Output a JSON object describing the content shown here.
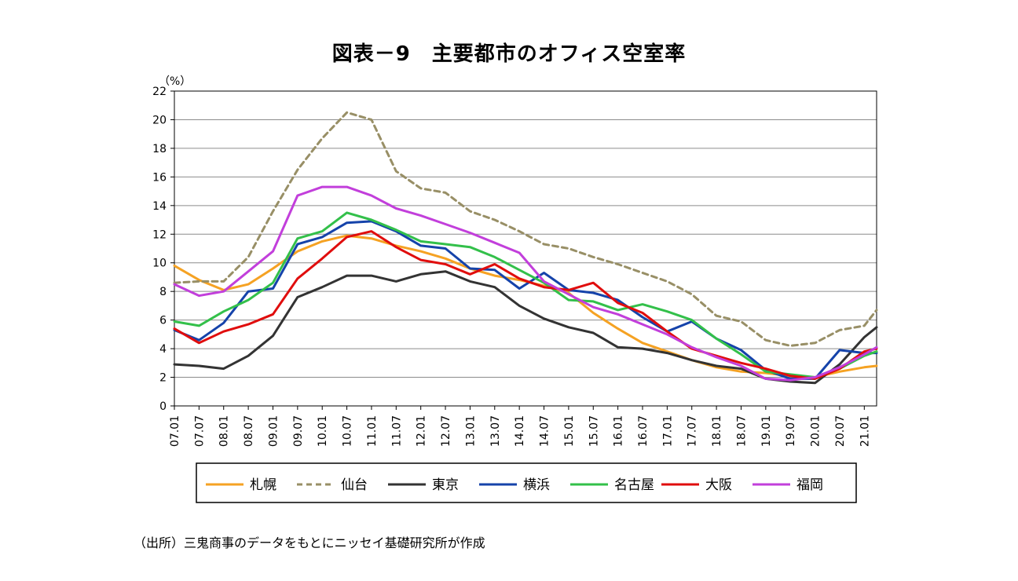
{
  "title": "図表－9　主要都市のオフィス空室率",
  "source": "（出所）三鬼商事のデータをもとにニッセイ基礎研究所が作成",
  "chart_data": {
    "type": "line",
    "ylabel": "（%）",
    "ylim": [
      0,
      22
    ],
    "yticks": [
      0,
      2,
      4,
      6,
      8,
      10,
      12,
      14,
      16,
      18,
      20,
      22
    ],
    "grid": true,
    "legend_position": "bottom",
    "x_range": [
      "2007.01",
      "2021.04"
    ],
    "xticks": [
      "07.01",
      "07.07",
      "08.01",
      "08.07",
      "09.01",
      "09.07",
      "10.01",
      "10.07",
      "11.01",
      "11.07",
      "12.01",
      "12.07",
      "13.01",
      "13.07",
      "14.01",
      "14.07",
      "15.01",
      "15.07",
      "16.01",
      "16.07",
      "17.01",
      "17.07",
      "18.01",
      "18.07",
      "19.01",
      "19.07",
      "20.01",
      "20.07",
      "21.01"
    ],
    "x": [
      "2007.01",
      "2007.07",
      "2008.01",
      "2008.07",
      "2009.01",
      "2009.07",
      "2010.01",
      "2010.07",
      "2011.01",
      "2011.07",
      "2012.01",
      "2012.07",
      "2013.01",
      "2013.07",
      "2014.01",
      "2014.07",
      "2015.01",
      "2015.07",
      "2016.01",
      "2016.07",
      "2017.01",
      "2017.07",
      "2018.01",
      "2018.07",
      "2019.01",
      "2019.07",
      "2020.01",
      "2020.07",
      "2021.01",
      "2021.04"
    ],
    "series": [
      {
        "name": "札幌",
        "color": "#F5A223",
        "dash": false,
        "values": [
          9.8,
          8.8,
          8.1,
          8.5,
          9.6,
          10.8,
          11.5,
          11.9,
          11.7,
          11.2,
          10.8,
          10.3,
          9.6,
          9.1,
          8.8,
          8.4,
          7.9,
          6.5,
          5.4,
          4.4,
          3.8,
          3.2,
          2.7,
          2.4,
          2.3,
          2.1,
          2.0,
          2.4,
          2.7,
          2.8
        ]
      },
      {
        "name": "仙台",
        "color": "#988F66",
        "dash": true,
        "values": [
          8.6,
          8.7,
          8.7,
          10.4,
          13.6,
          16.5,
          18.7,
          20.5,
          20.0,
          16.4,
          15.2,
          14.9,
          13.6,
          13.0,
          12.2,
          11.3,
          11.0,
          10.4,
          9.9,
          9.3,
          8.7,
          7.8,
          6.3,
          5.9,
          4.6,
          4.2,
          4.4,
          5.3,
          5.6,
          6.7
        ]
      },
      {
        "name": "東京",
        "color": "#333333",
        "dash": false,
        "values": [
          2.9,
          2.8,
          2.6,
          3.5,
          4.9,
          7.6,
          8.3,
          9.1,
          9.1,
          8.7,
          9.2,
          9.4,
          8.7,
          8.3,
          7.0,
          6.1,
          5.5,
          5.1,
          4.1,
          4.0,
          3.7,
          3.2,
          2.8,
          2.6,
          1.9,
          1.7,
          1.6,
          2.9,
          4.8,
          5.5
        ]
      },
      {
        "name": "横浜",
        "color": "#1543AA",
        "dash": false,
        "values": [
          5.3,
          4.6,
          5.8,
          8.0,
          8.2,
          11.3,
          11.8,
          12.8,
          12.9,
          12.2,
          11.2,
          11.0,
          9.6,
          9.5,
          8.2,
          9.3,
          8.1,
          7.9,
          7.4,
          6.2,
          5.2,
          5.9,
          4.7,
          3.9,
          2.5,
          1.9,
          1.9,
          3.9,
          3.7,
          3.7
        ]
      },
      {
        "name": "名古屋",
        "color": "#33C04A",
        "dash": false,
        "values": [
          5.9,
          5.6,
          6.6,
          7.4,
          8.6,
          11.7,
          12.2,
          13.5,
          13.0,
          12.3,
          11.5,
          11.3,
          11.1,
          10.4,
          9.5,
          8.6,
          7.4,
          7.3,
          6.7,
          7.1,
          6.6,
          6.0,
          4.7,
          3.6,
          2.4,
          2.2,
          2.0,
          2.6,
          3.5,
          3.8
        ]
      },
      {
        "name": "大阪",
        "color": "#E00D0D",
        "dash": false,
        "values": [
          5.4,
          4.4,
          5.2,
          5.7,
          6.4,
          8.9,
          10.3,
          11.8,
          12.2,
          11.1,
          10.2,
          9.9,
          9.2,
          9.9,
          8.9,
          8.3,
          8.1,
          8.6,
          7.2,
          6.5,
          5.2,
          4.0,
          3.5,
          3.0,
          2.6,
          2.1,
          1.9,
          2.6,
          3.8,
          4.0
        ]
      },
      {
        "name": "福岡",
        "color": "#C23FDB",
        "dash": false,
        "values": [
          8.5,
          7.7,
          8.0,
          9.4,
          10.8,
          14.7,
          15.3,
          15.3,
          14.7,
          13.8,
          13.3,
          12.7,
          12.1,
          11.4,
          10.7,
          8.7,
          7.8,
          6.9,
          6.4,
          5.7,
          5.0,
          4.1,
          3.4,
          2.8,
          1.9,
          1.8,
          2.0,
          2.7,
          3.6,
          4.1
        ]
      }
    ]
  }
}
